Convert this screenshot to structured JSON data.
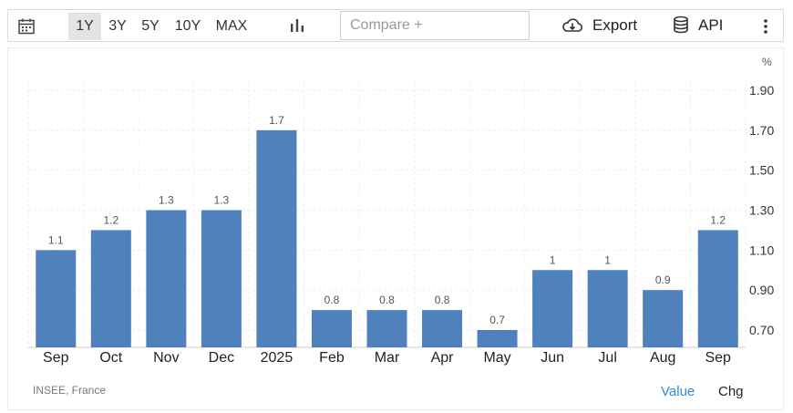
{
  "toolbar": {
    "ranges": [
      "1Y",
      "3Y",
      "5Y",
      "10Y",
      "MAX"
    ],
    "active_range": "1Y",
    "compare_placeholder": "Compare +",
    "export_label": "Export",
    "api_label": "API",
    "icons": [
      "calendar-icon",
      "bar-chart-icon",
      "cloud-download-icon",
      "database-icon",
      "more-vertical-icon"
    ]
  },
  "footer": {
    "source": "INSEE, France",
    "value_label": "Value",
    "chg_label": "Chg"
  },
  "colors": {
    "bar": "#4f81bd",
    "accent": "#2b8cd8"
  },
  "chart_data": {
    "type": "bar",
    "categories": [
      "Sep",
      "Oct",
      "Nov",
      "Dec",
      "2025",
      "Feb",
      "Mar",
      "Apr",
      "May",
      "Jun",
      "Jul",
      "Aug",
      "Sep"
    ],
    "values": [
      1.1,
      1.2,
      1.3,
      1.3,
      1.7,
      0.8,
      0.8,
      0.8,
      0.7,
      1.0,
      1.0,
      0.9,
      1.2
    ],
    "data_labels": [
      "1.1",
      "1.2",
      "1.3",
      "1.3",
      "1.7",
      "0.8",
      "0.8",
      "0.8",
      "0.7",
      "1",
      "1",
      "0.9",
      "1.2"
    ],
    "y_ticks": [
      "1.90",
      "1.70",
      "1.50",
      "1.30",
      "1.10",
      "0.90",
      "0.70"
    ],
    "y_unit": "%",
    "ylim": [
      0.6,
      1.9
    ],
    "y_axis_side": "right",
    "grid": true
  }
}
